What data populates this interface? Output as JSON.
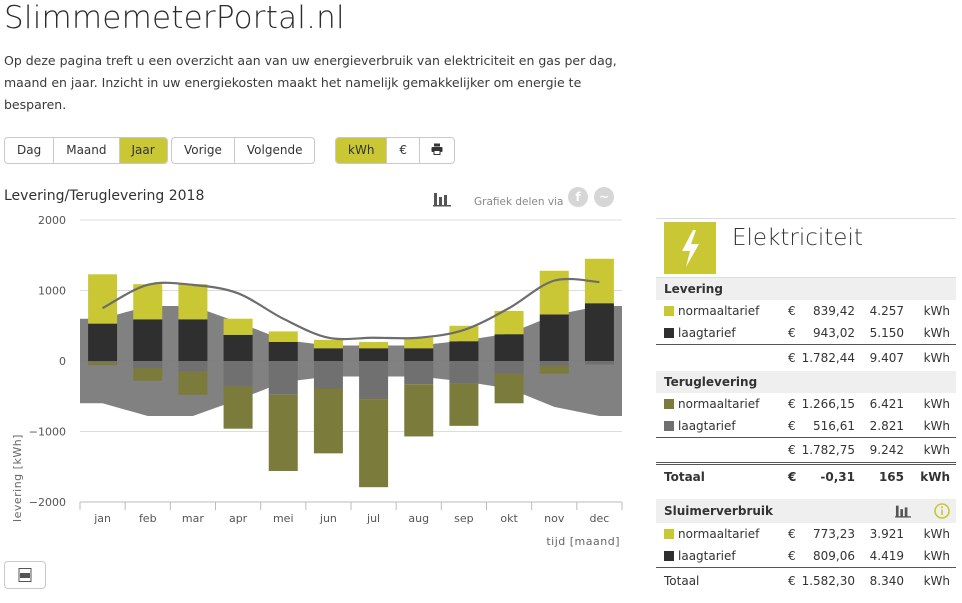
{
  "header": {
    "title": "SlimmemeterPortal.nl",
    "intro": "Op deze pagina treft u een overzicht aan van uw energieverbruik van elektriciteit en gas per dag, maand en jaar. Inzicht in uw energiekosten maakt het namelijk gemakkelijker om energie te besparen."
  },
  "toolbar": {
    "period": [
      "Dag",
      "Maand",
      "Jaar"
    ],
    "nav": [
      "Vorige",
      "Volgende"
    ],
    "units": [
      "kWh",
      "€"
    ],
    "print_icon": "printer-icon",
    "active_period": "Jaar",
    "active_unit": "kWh"
  },
  "chart_header": {
    "title": "Levering/Teruglevering 2018",
    "share_text": "Grafiek delen via",
    "icons": [
      "chart-type-icon",
      "facebook-icon",
      "twitter-icon"
    ]
  },
  "colors": {
    "accent": "#c9c834",
    "dark": "#2f2f2f",
    "olive": "#7b7b3c",
    "grey": "#707070",
    "area": "#7a7a7a"
  },
  "chart_data": {
    "type": "bar",
    "categories": [
      "jan",
      "feb",
      "mar",
      "apr",
      "mei",
      "jun",
      "jul",
      "aug",
      "sep",
      "okt",
      "nov",
      "dec"
    ],
    "ylabel": "levering [kWh]",
    "xlabel": "tijd [maand]",
    "ylim": [
      -2000,
      2000
    ],
    "yticks": [
      2000,
      1000,
      0,
      -1000,
      -2000
    ],
    "ytick_labels": [
      "2000",
      "1000",
      "0",
      "−1000",
      "−2000"
    ],
    "series": [
      {
        "name": "normaaltarief",
        "values": [
          700,
          500,
          500,
          230,
          150,
          120,
          90,
          150,
          220,
          330,
          620,
          630
        ]
      },
      {
        "name": "laagtarief",
        "values": [
          530,
          590,
          590,
          370,
          270,
          180,
          180,
          180,
          280,
          380,
          660,
          820
        ]
      },
      {
        "name": "normaaltarief teruglevering",
        "values": [
          -40,
          -180,
          -330,
          -600,
          -1080,
          -920,
          -1250,
          -740,
          -600,
          -420,
          -110,
          0
        ]
      },
      {
        "name": "laagtarief teruglevering",
        "values": [
          -20,
          -100,
          -150,
          -360,
          -480,
          -390,
          -540,
          -330,
          -320,
          -180,
          -70,
          -50
        ]
      }
    ],
    "line_values": [
      750,
      1080,
      1080,
      960,
      600,
      330,
      330,
      330,
      440,
      750,
      1140,
      1120
    ],
    "area_values": [
      600,
      780,
      780,
      550,
      300,
      220,
      220,
      220,
      290,
      390,
      650,
      780
    ],
    "grid": true
  },
  "panel": {
    "title": "Elektriciteit",
    "levering": {
      "heading": "Levering",
      "rows": [
        {
          "label": "normaaltarief",
          "eur": "€",
          "amount": "839,42",
          "kwh": "4.257",
          "unit": "kWh"
        },
        {
          "label": "laagtarief",
          "eur": "€",
          "amount": "943,02",
          "kwh": "5.150",
          "unit": "kWh"
        }
      ],
      "total": {
        "eur": "€",
        "amount": "1.782,44",
        "kwh": "9.407",
        "unit": "kWh"
      }
    },
    "teruglevering": {
      "heading": "Teruglevering",
      "rows": [
        {
          "label": "normaaltarief",
          "eur": "€",
          "amount": "1.266,15",
          "kwh": "6.421",
          "unit": "kWh"
        },
        {
          "label": "laagtarief",
          "eur": "€",
          "amount": "516,61",
          "kwh": "2.821",
          "unit": "kWh"
        }
      ],
      "total": {
        "eur": "€",
        "amount": "1.782,75",
        "kwh": "9.242",
        "unit": "kWh"
      }
    },
    "totaal": {
      "label": "Totaal",
      "eur": "€",
      "amount": "-0,31",
      "kwh": "165",
      "unit": "kWh"
    },
    "sluimer": {
      "heading": "Sluimerverbruik",
      "rows": [
        {
          "label": "normaaltarief",
          "eur": "€",
          "amount": "773,23",
          "kwh": "3.921",
          "unit": "kWh"
        },
        {
          "label": "laagtarief",
          "eur": "€",
          "amount": "809,06",
          "kwh": "4.419",
          "unit": "kWh"
        }
      ],
      "total": {
        "label": "Totaal",
        "eur": "€",
        "amount": "1.582,30",
        "kwh": "8.340",
        "unit": "kWh"
      }
    }
  }
}
